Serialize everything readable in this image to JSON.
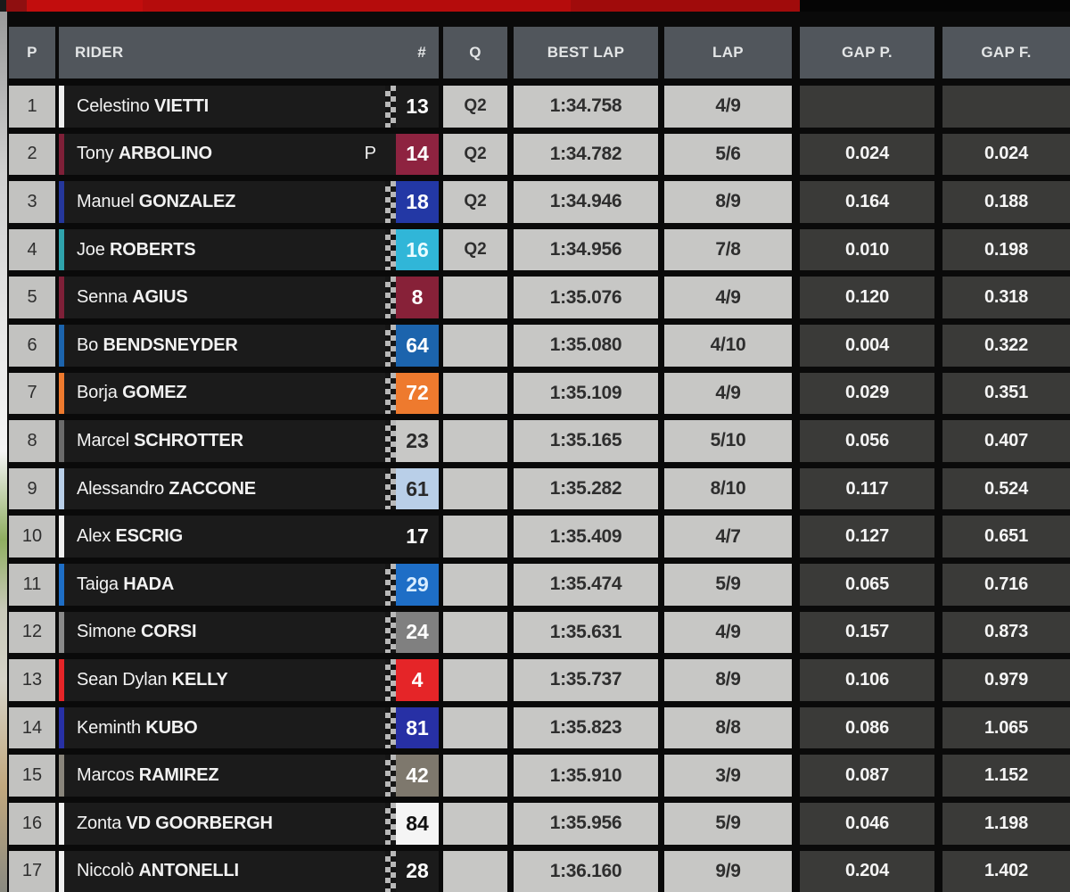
{
  "colors": {
    "accent_red": "#c20d0d",
    "header_bg": "#51565c",
    "row_bg": "#1b1b1b",
    "light_cell_bg": "#c7c7c5",
    "gap_cell_bg": "#3a3a38"
  },
  "header": {
    "columns": [
      "P",
      "RIDER",
      "#",
      "Q",
      "BEST LAP",
      "LAP",
      "GAP P.",
      "GAP F."
    ]
  },
  "rows": [
    {
      "pos": "1",
      "first": "Celestino",
      "last": "VIETTI",
      "ind": "",
      "num": "13",
      "num_bg": "transparent",
      "num_fg": "#ffffff",
      "stripe": "#f0f0f0",
      "checkered": true,
      "q": "Q2",
      "best": "1:34.758",
      "lap": "4/9",
      "gap_p": "",
      "gap_f": ""
    },
    {
      "pos": "2",
      "first": "Tony",
      "last": "ARBOLINO",
      "ind": "P",
      "num": "14",
      "num_bg": "#8e2340",
      "num_fg": "#ffffff",
      "stripe": "#7e2038",
      "checkered": false,
      "q": "Q2",
      "best": "1:34.782",
      "lap": "5/6",
      "gap_p": "0.024",
      "gap_f": "0.024"
    },
    {
      "pos": "3",
      "first": "Manuel",
      "last": "GONZALEZ",
      "ind": "",
      "num": "18",
      "num_bg": "#2338a5",
      "num_fg": "#ffffff",
      "stripe": "#25379b",
      "checkered": true,
      "q": "Q2",
      "best": "1:34.946",
      "lap": "8/9",
      "gap_p": "0.164",
      "gap_f": "0.188"
    },
    {
      "pos": "4",
      "first": "Joe",
      "last": "ROBERTS",
      "ind": "",
      "num": "16",
      "num_bg": "#30b6d8",
      "num_fg": "#eafcff",
      "stripe": "#2fa3ac",
      "checkered": true,
      "q": "Q2",
      "best": "1:34.956",
      "lap": "7/8",
      "gap_p": "0.010",
      "gap_f": "0.198"
    },
    {
      "pos": "5",
      "first": "Senna",
      "last": "AGIUS",
      "ind": "",
      "num": "8",
      "num_bg": "#872138",
      "num_fg": "#ffffff",
      "stripe": "#7e2038",
      "checkered": true,
      "q": "",
      "best": "1:35.076",
      "lap": "4/9",
      "gap_p": "0.120",
      "gap_f": "0.318"
    },
    {
      "pos": "6",
      "first": "Bo",
      "last": "BENDSNEYDER",
      "ind": "",
      "num": "64",
      "num_bg": "#1c64ad",
      "num_fg": "#ffffff",
      "stripe": "#1c64ad",
      "checkered": true,
      "q": "",
      "best": "1:35.080",
      "lap": "4/10",
      "gap_p": "0.004",
      "gap_f": "0.322"
    },
    {
      "pos": "7",
      "first": "Borja",
      "last": "GOMEZ",
      "ind": "",
      "num": "72",
      "num_bg": "#ee7a2e",
      "num_fg": "#ffffff",
      "stripe": "#ee7a2e",
      "checkered": true,
      "q": "",
      "best": "1:35.109",
      "lap": "4/9",
      "gap_p": "0.029",
      "gap_f": "0.351"
    },
    {
      "pos": "8",
      "first": "Marcel",
      "last": "SCHROTTER",
      "ind": "",
      "num": "23",
      "num_bg": "#c8c8c6",
      "num_fg": "#2a2a2a",
      "stripe": "#6b6b6b",
      "checkered": true,
      "q": "",
      "best": "1:35.165",
      "lap": "5/10",
      "gap_p": "0.056",
      "gap_f": "0.407"
    },
    {
      "pos": "9",
      "first": "Alessandro",
      "last": "ZACCONE",
      "ind": "",
      "num": "61",
      "num_bg": "#b9cfe8",
      "num_fg": "#2a2a2a",
      "stripe": "#b9cfe8",
      "checkered": true,
      "q": "",
      "best": "1:35.282",
      "lap": "8/10",
      "gap_p": "0.117",
      "gap_f": "0.524"
    },
    {
      "pos": "10",
      "first": "Alex",
      "last": "ESCRIG",
      "ind": "",
      "num": "17",
      "num_bg": "transparent",
      "num_fg": "#ffffff",
      "stripe": "#f0f0f0",
      "checkered": false,
      "q": "",
      "best": "1:35.409",
      "lap": "4/7",
      "gap_p": "0.127",
      "gap_f": "0.651"
    },
    {
      "pos": "11",
      "first": "Taiga",
      "last": "HADA",
      "ind": "",
      "num": "29",
      "num_bg": "#1e6ec6",
      "num_fg": "#d8ecff",
      "stripe": "#1e6ec6",
      "checkered": true,
      "q": "",
      "best": "1:35.474",
      "lap": "5/9",
      "gap_p": "0.065",
      "gap_f": "0.716"
    },
    {
      "pos": "12",
      "first": "Simone",
      "last": "CORSI",
      "ind": "",
      "num": "24",
      "num_bg": "#808080",
      "num_fg": "#ffffff",
      "stripe": "#8a8a8a",
      "checkered": true,
      "q": "",
      "best": "1:35.631",
      "lap": "4/9",
      "gap_p": "0.157",
      "gap_f": "0.873"
    },
    {
      "pos": "13",
      "first": "Sean Dylan",
      "last": "KELLY",
      "ind": "",
      "num": "4",
      "num_bg": "#e52528",
      "num_fg": "#ffffff",
      "stripe": "#e52528",
      "checkered": true,
      "q": "",
      "best": "1:35.737",
      "lap": "8/9",
      "gap_p": "0.106",
      "gap_f": "0.979"
    },
    {
      "pos": "14",
      "first": "Keminth",
      "last": "KUBO",
      "ind": "",
      "num": "81",
      "num_bg": "#2730a5",
      "num_fg": "#ffffff",
      "stripe": "#2730a5",
      "checkered": true,
      "q": "",
      "best": "1:35.823",
      "lap": "8/8",
      "gap_p": "0.086",
      "gap_f": "1.065"
    },
    {
      "pos": "15",
      "first": "Marcos",
      "last": "RAMIREZ",
      "ind": "",
      "num": "42",
      "num_bg": "#7e786d",
      "num_fg": "#ffffff",
      "stripe": "#8a867c",
      "checkered": true,
      "q": "",
      "best": "1:35.910",
      "lap": "3/9",
      "gap_p": "0.087",
      "gap_f": "1.152"
    },
    {
      "pos": "16",
      "first": "Zonta",
      "last": "VD GOORBERGH",
      "ind": "",
      "num": "84",
      "num_bg": "#f5f5f5",
      "num_fg": "#111111",
      "stripe": "#f0f0f0",
      "checkered": true,
      "q": "",
      "best": "1:35.956",
      "lap": "5/9",
      "gap_p": "0.046",
      "gap_f": "1.198"
    },
    {
      "pos": "17",
      "first": "Niccolò",
      "last": "ANTONELLI",
      "ind": "",
      "num": "28",
      "num_bg": "transparent",
      "num_fg": "#ffffff",
      "stripe": "#f0f0f0",
      "checkered": true,
      "q": "",
      "best": "1:36.160",
      "lap": "9/9",
      "gap_p": "0.204",
      "gap_f": "1.402"
    }
  ]
}
